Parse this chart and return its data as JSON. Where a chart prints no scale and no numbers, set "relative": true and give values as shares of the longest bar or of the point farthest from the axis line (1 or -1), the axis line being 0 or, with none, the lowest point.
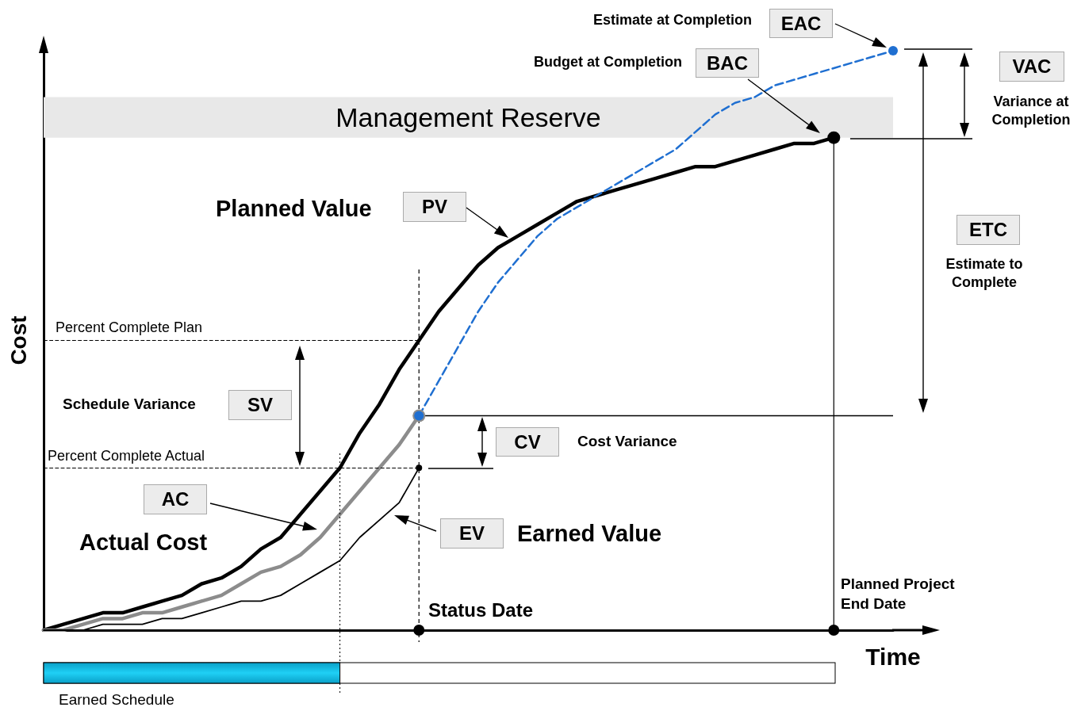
{
  "chart_data": {
    "type": "line",
    "relative": true,
    "xlabel": "Time",
    "ylabel": "Cost",
    "grid": false,
    "categories": [
      null,
      null,
      null,
      null,
      null,
      null,
      null,
      null,
      null,
      null,
      null,
      null,
      null,
      null,
      null,
      null,
      null,
      null,
      null,
      null,
      null,
      null,
      null,
      null,
      null,
      null,
      null,
      null,
      null,
      null,
      null,
      null,
      null,
      null,
      null,
      null,
      null,
      null,
      null,
      null,
      null,
      null,
      null,
      null
    ],
    "series": [
      {
        "color": "#000000",
        "values": [
          0,
          0.01,
          0.02,
          0.03,
          0.03,
          0.04,
          0.05,
          0.06,
          0.08,
          0.09,
          0.11,
          0.14,
          0.16,
          0.2,
          0.24,
          0.28,
          0.34,
          0.39,
          0.45,
          0.5,
          0.55,
          0.59,
          0.63,
          0.66,
          0.68,
          0.7,
          0.72,
          0.74,
          0.75,
          0.76,
          0.77,
          0.78,
          0.79,
          0.8,
          0.8,
          0.81,
          0.82,
          0.83,
          0.84,
          0.84,
          0.85,
          null,
          null,
          null
        ]
      },
      {
        "color": "#8c8c8c",
        "values": [
          0,
          0,
          0.01,
          0.02,
          0.02,
          0.03,
          0.03,
          0.04,
          0.05,
          0.06,
          0.08,
          0.1,
          0.11,
          0.13,
          0.16,
          0.2,
          0.24,
          0.28,
          0.32,
          0.37,
          null,
          null,
          null,
          null,
          null,
          null,
          null,
          null,
          null,
          null,
          null,
          null,
          null,
          null,
          null,
          null,
          null,
          null,
          null,
          null,
          null,
          null,
          null,
          null
        ]
      },
      {
        "color": "#000000",
        "values": [
          0,
          0,
          0,
          0.01,
          0.01,
          0.01,
          0.02,
          0.02,
          0.03,
          0.04,
          0.05,
          0.05,
          0.06,
          0.08,
          0.1,
          0.12,
          0.16,
          0.19,
          0.22,
          0.28,
          null,
          null,
          null,
          null,
          null,
          null,
          null,
          null,
          null,
          null,
          null,
          null,
          null,
          null,
          null,
          null,
          null,
          null,
          null,
          null,
          null,
          null,
          null,
          null
        ]
      },
      {
        "color": "#1f6fd1",
        "line_style": "dashed",
        "values": [
          null,
          null,
          null,
          null,
          null,
          null,
          null,
          null,
          null,
          null,
          null,
          null,
          null,
          null,
          null,
          null,
          null,
          null,
          null,
          0.37,
          0.43,
          0.49,
          0.55,
          0.6,
          0.64,
          0.68,
          0.71,
          0.73,
          0.75,
          0.77,
          0.79,
          0.81,
          0.83,
          0.86,
          0.89,
          0.91,
          0.92,
          0.94,
          0.95,
          0.96,
          0.97,
          0.98,
          0.99,
          1
        ]
      }
    ],
    "bands": [
      {
        "axis": "y",
        "from": 0.85,
        "to": 0.92,
        "label": "Management Reserve",
        "color": "#e8e8e8"
      }
    ],
    "ref_lines": [
      {
        "axis": "y",
        "value": 0.5,
        "label": "Percent Complete Plan",
        "line_style": "dashed"
      },
      {
        "axis": "y",
        "value": 0.28,
        "label": "Percent Complete Actual",
        "line_style": "dashed"
      },
      {
        "axis": "y",
        "value": 0.37,
        "line_style": "solid"
      }
    ],
    "annotations": [
      "Estimate at Completion",
      "EAC",
      "Budget at Completion",
      "BAC",
      "VAC",
      "Variance at Completion",
      "ETC",
      "Estimate to Complete",
      "Planned Value",
      "PV",
      "SV",
      "Schedule Variance",
      "CV",
      "Cost Variance",
      "AC",
      "Actual Cost",
      "EV",
      "Earned Value",
      "Earned Schedule",
      "Status Date",
      "Planned Project End Date"
    ]
  }
}
